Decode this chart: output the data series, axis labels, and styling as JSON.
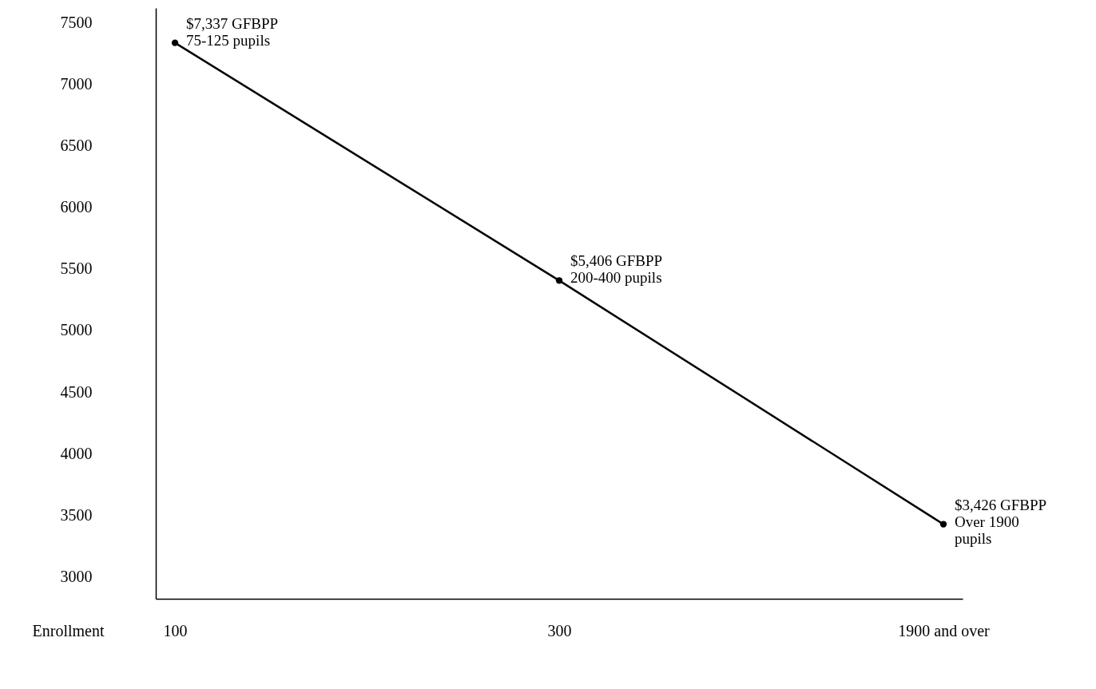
{
  "chart_data": {
    "type": "line",
    "xlabel": "Enrollment",
    "categories": [
      "100",
      "300",
      "1900 and over"
    ],
    "series": [
      {
        "color": "#000000",
        "values": [
          7337,
          5406,
          3426
        ],
        "value_labels": [
          "$7,337 GFBPP\n75-125 pupils",
          "$5,406 GFBPP\n200-400 pupils",
          "$3,426 GFBPP\nOver 1900\npupils"
        ]
      }
    ],
    "ylim": [
      2820,
      7620
    ],
    "yticks": [
      3000,
      3500,
      4000,
      4500,
      5000,
      5500,
      6000,
      6500,
      7000,
      7500
    ],
    "marker": "circle",
    "grid": false,
    "legend": false,
    "line_style": "solid"
  }
}
